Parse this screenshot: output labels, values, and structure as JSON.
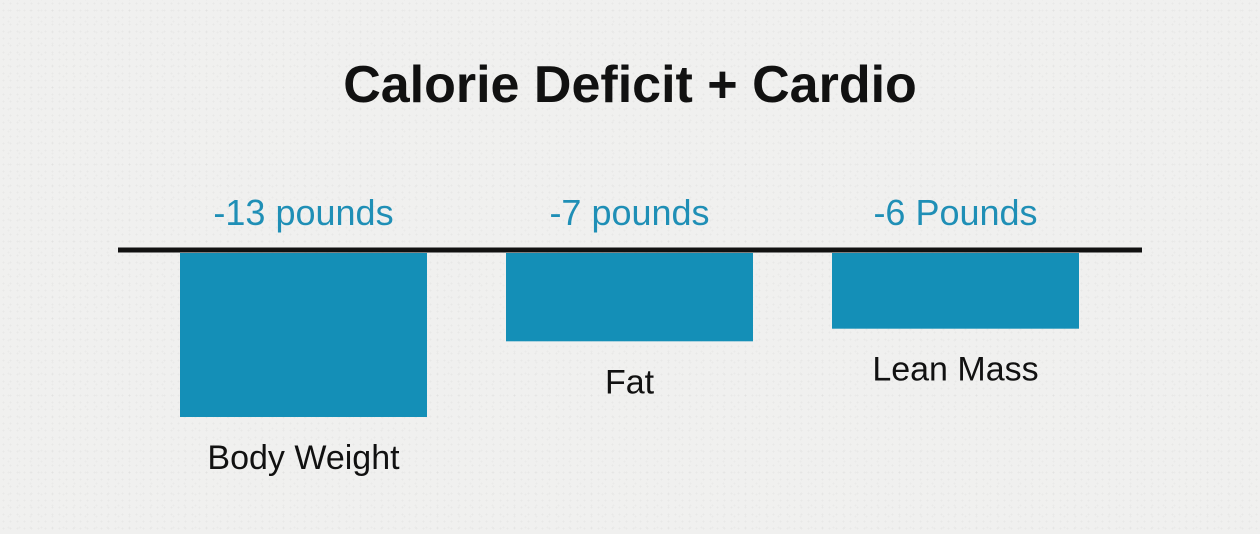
{
  "chart_data": {
    "type": "bar",
    "title": "Calorie Deficit + Cardio",
    "categories": [
      "Body Weight",
      "Fat",
      "Lean Mass"
    ],
    "values": [
      -13,
      -7,
      -6
    ],
    "value_labels": [
      "-13 pounds",
      "-7 pounds",
      "-6 Pounds"
    ],
    "ylim": [
      -13,
      0
    ],
    "grid": false,
    "orientation": "baseline-top",
    "colors": {
      "bar": "#148fb7",
      "value_label": "#1f8fb6",
      "baseline": "#111111",
      "text": "#111111"
    }
  }
}
